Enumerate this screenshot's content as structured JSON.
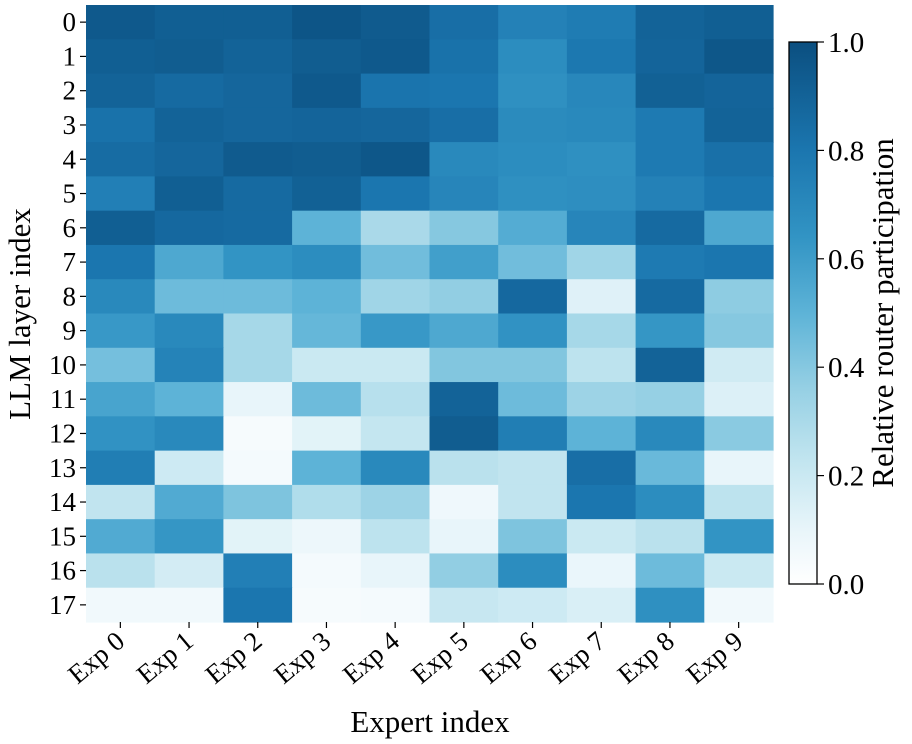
{
  "chart_data": {
    "type": "heatmap",
    "title": "",
    "xlabel": "Expert index",
    "ylabel": "LLM layer index",
    "x_categories": [
      "Exp 0",
      "Exp 1",
      "Exp 2",
      "Exp 3",
      "Exp 4",
      "Exp 5",
      "Exp 6",
      "Exp 7",
      "Exp 8",
      "Exp 9"
    ],
    "y_categories": [
      "0",
      "1",
      "2",
      "3",
      "4",
      "5",
      "6",
      "7",
      "8",
      "9",
      "10",
      "11",
      "12",
      "13",
      "14",
      "15",
      "16",
      "17"
    ],
    "values": [
      [
        0.95,
        0.92,
        0.92,
        0.97,
        0.94,
        0.84,
        0.74,
        0.77,
        0.9,
        0.92
      ],
      [
        0.92,
        0.93,
        0.9,
        0.93,
        0.95,
        0.82,
        0.68,
        0.79,
        0.89,
        0.96
      ],
      [
        0.9,
        0.86,
        0.88,
        0.95,
        0.81,
        0.8,
        0.66,
        0.71,
        0.91,
        0.89
      ],
      [
        0.82,
        0.9,
        0.88,
        0.89,
        0.88,
        0.84,
        0.69,
        0.7,
        0.78,
        0.9
      ],
      [
        0.85,
        0.88,
        0.94,
        0.93,
        0.96,
        0.7,
        0.68,
        0.66,
        0.78,
        0.83
      ],
      [
        0.75,
        0.92,
        0.86,
        0.91,
        0.8,
        0.72,
        0.66,
        0.67,
        0.74,
        0.8
      ],
      [
        0.92,
        0.87,
        0.86,
        0.5,
        0.3,
        0.4,
        0.53,
        0.72,
        0.86,
        0.55
      ],
      [
        0.8,
        0.55,
        0.64,
        0.68,
        0.45,
        0.59,
        0.45,
        0.33,
        0.78,
        0.8
      ],
      [
        0.7,
        0.46,
        0.46,
        0.5,
        0.33,
        0.37,
        0.87,
        0.13,
        0.86,
        0.38
      ],
      [
        0.62,
        0.7,
        0.31,
        0.48,
        0.62,
        0.55,
        0.65,
        0.31,
        0.63,
        0.4
      ],
      [
        0.44,
        0.73,
        0.31,
        0.2,
        0.2,
        0.41,
        0.41,
        0.24,
        0.9,
        0.18
      ],
      [
        0.57,
        0.5,
        0.1,
        0.46,
        0.26,
        0.9,
        0.46,
        0.34,
        0.36,
        0.14
      ],
      [
        0.65,
        0.7,
        0.04,
        0.12,
        0.22,
        0.93,
        0.76,
        0.5,
        0.7,
        0.39
      ],
      [
        0.76,
        0.19,
        0.05,
        0.5,
        0.7,
        0.25,
        0.23,
        0.84,
        0.47,
        0.1
      ],
      [
        0.23,
        0.54,
        0.42,
        0.28,
        0.34,
        0.07,
        0.23,
        0.8,
        0.68,
        0.24
      ],
      [
        0.54,
        0.63,
        0.12,
        0.08,
        0.24,
        0.1,
        0.42,
        0.2,
        0.25,
        0.64
      ],
      [
        0.25,
        0.17,
        0.75,
        0.05,
        0.1,
        0.37,
        0.68,
        0.09,
        0.46,
        0.2
      ],
      [
        0.06,
        0.06,
        0.8,
        0.04,
        0.05,
        0.21,
        0.19,
        0.15,
        0.66,
        0.06
      ]
    ],
    "colorbar": {
      "label": "Relative router participation",
      "min": 0.0,
      "max": 1.0,
      "ticks": [
        "0.0",
        "0.2",
        "0.4",
        "0.6",
        "0.8",
        "1.0"
      ],
      "tick_values": [
        0.0,
        0.2,
        0.4,
        0.6,
        0.8,
        1.0
      ]
    },
    "colormap": {
      "name": "white-to-dark-blue",
      "stops": [
        "#ffffff",
        "#e8f5fa",
        "#c4e6f0",
        "#96d0e4",
        "#5db3d7",
        "#3294c4",
        "#1b76af",
        "#0b4f80"
      ],
      "stop_values": [
        0.0,
        0.1,
        0.22,
        0.36,
        0.5,
        0.64,
        0.8,
        1.0
      ]
    }
  }
}
